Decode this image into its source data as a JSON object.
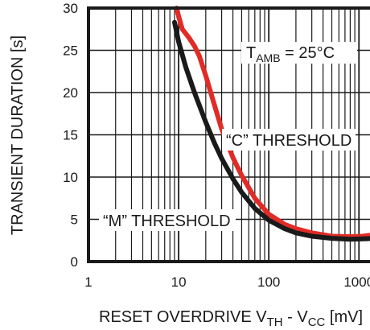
{
  "chart_data": {
    "type": "line",
    "xscale": "log",
    "xlim": [
      1,
      1500
    ],
    "ylim": [
      0,
      30
    ],
    "grid": true,
    "xlabel": {
      "main": "RESET OVERDRIVE V",
      "sub1": "TH",
      "mid": " - V",
      "sub2": "CC",
      "tail": " [mV]"
    },
    "ylabel": "TRANSIENT DURATION [s]",
    "x_ticks": [
      {
        "value": 1,
        "label": "1"
      },
      {
        "value": 10,
        "label": "10"
      },
      {
        "value": 100,
        "label": "100"
      },
      {
        "value": 1000,
        "label": "1000"
      }
    ],
    "y_ticks": [
      {
        "value": 0,
        "label": "0"
      },
      {
        "value": 5,
        "label": "5"
      },
      {
        "value": 10,
        "label": "10"
      },
      {
        "value": 15,
        "label": "15"
      },
      {
        "value": 20,
        "label": "20"
      },
      {
        "value": 25,
        "label": "25"
      },
      {
        "value": 30,
        "label": "30"
      }
    ],
    "series": [
      {
        "name": "“C” THRESHOLD",
        "color": "#e02b26",
        "points": [
          [
            9.5,
            30
          ],
          [
            10,
            29
          ],
          [
            11,
            27.5
          ],
          [
            13,
            26.5
          ],
          [
            15,
            25.5
          ],
          [
            17,
            24.3
          ],
          [
            20,
            22
          ],
          [
            25,
            18.5
          ],
          [
            30,
            15.7
          ],
          [
            40,
            12.3
          ],
          [
            50,
            10.2
          ],
          [
            70,
            7.5
          ],
          [
            100,
            5.6
          ],
          [
            150,
            4.4
          ],
          [
            200,
            3.9
          ],
          [
            300,
            3.4
          ],
          [
            500,
            3.0
          ],
          [
            800,
            2.95
          ],
          [
            1100,
            3.0
          ],
          [
            1500,
            3.2
          ]
        ]
      },
      {
        "name": "“M” THRESHOLD",
        "color": "#1a1a1a",
        "points": [
          [
            9,
            28.3
          ],
          [
            10,
            26
          ],
          [
            12,
            23
          ],
          [
            15,
            20
          ],
          [
            20,
            16.5
          ],
          [
            25,
            14
          ],
          [
            30,
            12.2
          ],
          [
            40,
            9.8
          ],
          [
            50,
            8.2
          ],
          [
            70,
            6.3
          ],
          [
            100,
            4.9
          ],
          [
            150,
            3.9
          ],
          [
            200,
            3.4
          ],
          [
            300,
            3.0
          ],
          [
            500,
            2.75
          ],
          [
            800,
            2.65
          ],
          [
            1200,
            2.7
          ],
          [
            1500,
            2.75
          ]
        ]
      }
    ],
    "annotations": {
      "c_threshold": "“C” THRESHOLD",
      "m_threshold": "“M” THRESHOLD",
      "tamb_main": "T",
      "tamb_sub": "AMB",
      "tamb_tail": " = 25°C"
    }
  }
}
